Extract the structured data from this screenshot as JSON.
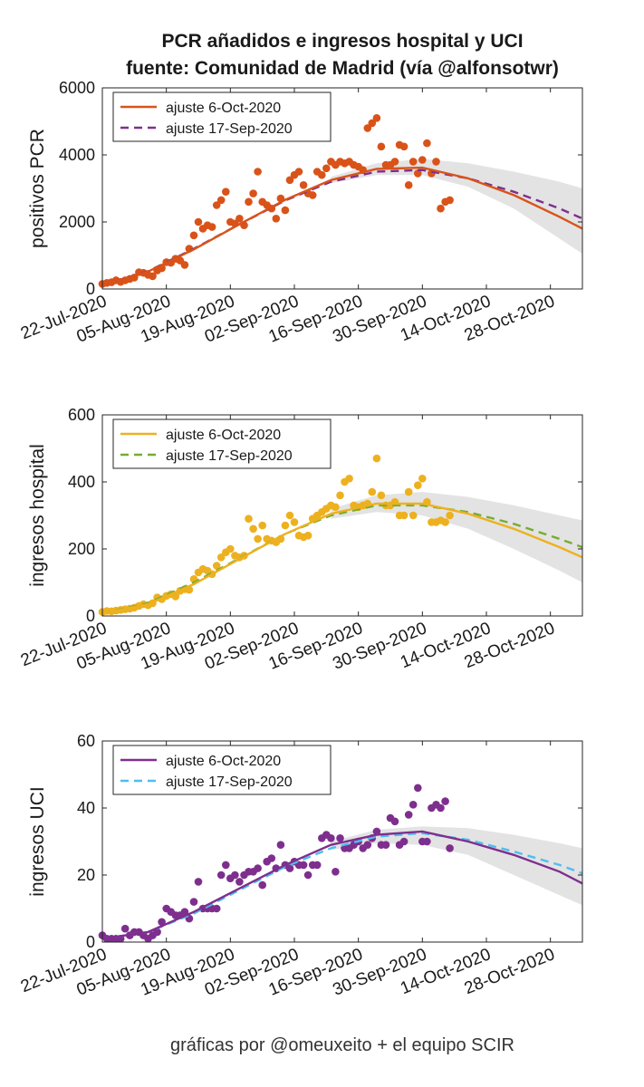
{
  "figure": {
    "title_line1": "PCR añadidos e ingresos hospital y UCI",
    "title_line2": "fuente: Comunidad de Madrid (vía @alfonsotwr)",
    "footer": "gráficas por @omeuxeito + el equipo SCIR"
  },
  "chart_data": [
    {
      "type": "scatter",
      "ylabel": "positivos PCR",
      "ylim": [
        0,
        6000
      ],
      "yticks": [
        0,
        2000,
        4000,
        6000
      ],
      "xlim": [
        "2020-07-22",
        "2020-11-04"
      ],
      "xticks": [
        "22-Jul-2020",
        "05-Aug-2020",
        "19-Aug-2020",
        "02-Sep-2020",
        "16-Sep-2020",
        "30-Sep-2020",
        "14-Oct-2020",
        "28-Oct-2020"
      ],
      "legend_position": "top-left",
      "colors": {
        "points": "#d95319",
        "fit_oct": "#d95319",
        "fit_sep": "#7e2f8e"
      },
      "points": {
        "x": [
          "2020-07-22",
          "2020-07-23",
          "2020-07-24",
          "2020-07-25",
          "2020-07-26",
          "2020-07-27",
          "2020-07-28",
          "2020-07-29",
          "2020-07-30",
          "2020-07-31",
          "2020-08-01",
          "2020-08-02",
          "2020-08-03",
          "2020-08-04",
          "2020-08-05",
          "2020-08-06",
          "2020-08-07",
          "2020-08-08",
          "2020-08-09",
          "2020-08-10",
          "2020-08-11",
          "2020-08-12",
          "2020-08-13",
          "2020-08-14",
          "2020-08-15",
          "2020-08-16",
          "2020-08-17",
          "2020-08-18",
          "2020-08-19",
          "2020-08-20",
          "2020-08-21",
          "2020-08-22",
          "2020-08-23",
          "2020-08-24",
          "2020-08-25",
          "2020-08-26",
          "2020-08-27",
          "2020-08-28",
          "2020-08-29",
          "2020-08-30",
          "2020-08-31",
          "2020-09-01",
          "2020-09-02",
          "2020-09-03",
          "2020-09-04",
          "2020-09-05",
          "2020-09-06",
          "2020-09-07",
          "2020-09-08",
          "2020-09-09",
          "2020-09-10",
          "2020-09-11",
          "2020-09-12",
          "2020-09-13",
          "2020-09-14",
          "2020-09-15",
          "2020-09-16",
          "2020-09-17",
          "2020-09-18",
          "2020-09-19",
          "2020-09-20",
          "2020-09-21",
          "2020-09-22",
          "2020-09-23",
          "2020-09-24",
          "2020-09-25",
          "2020-09-26",
          "2020-09-27",
          "2020-09-28",
          "2020-09-29",
          "2020-09-30",
          "2020-10-01",
          "2020-10-02",
          "2020-10-03",
          "2020-10-04",
          "2020-10-05",
          "2020-10-06"
        ],
        "y": [
          150,
          180,
          200,
          260,
          210,
          260,
          300,
          340,
          500,
          480,
          420,
          380,
          550,
          620,
          800,
          780,
          900,
          850,
          720,
          1200,
          1600,
          2000,
          1800,
          1900,
          1850,
          2500,
          2650,
          2900,
          2000,
          1950,
          2100,
          1900,
          2600,
          2850,
          3500,
          2600,
          2500,
          2400,
          2100,
          2700,
          2350,
          3250,
          3400,
          3500,
          3100,
          2850,
          2800,
          3500,
          3400,
          3600,
          3800,
          3700,
          3800,
          3750,
          3800,
          3700,
          3650,
          3550,
          4800,
          4950,
          5100,
          4250,
          3700,
          3700,
          3800,
          4300,
          4250,
          3100,
          3800,
          3450,
          3850,
          4350,
          3450,
          3800,
          2400,
          2600,
          2650
        ]
      },
      "fit_oct": {
        "name": "ajuste 6-Oct-2020",
        "x": [
          "2020-07-22",
          "2020-08-01",
          "2020-08-11",
          "2020-08-21",
          "2020-08-31",
          "2020-09-10",
          "2020-09-20",
          "2020-09-30",
          "2020-10-10",
          "2020-10-20",
          "2020-10-30",
          "2020-11-04"
        ],
        "y": [
          100,
          520,
          1180,
          1930,
          2660,
          3250,
          3580,
          3620,
          3300,
          2800,
          2150,
          1800
        ]
      },
      "fit_sep": {
        "name": "ajuste 17-Sep-2020",
        "x": [
          "2020-07-22",
          "2020-08-01",
          "2020-08-11",
          "2020-08-21",
          "2020-08-31",
          "2020-09-10",
          "2020-09-20",
          "2020-09-30",
          "2020-10-10",
          "2020-10-20",
          "2020-10-30",
          "2020-11-04"
        ],
        "y": [
          100,
          530,
          1200,
          1930,
          2640,
          3200,
          3500,
          3550,
          3300,
          2900,
          2400,
          2100
        ]
      },
      "band": {
        "x": [
          "2020-09-10",
          "2020-09-20",
          "2020-09-30",
          "2020-10-10",
          "2020-10-20",
          "2020-10-30",
          "2020-11-04"
        ],
        "upper": [
          3350,
          3750,
          3880,
          3750,
          3500,
          3200,
          3000
        ],
        "lower": [
          3150,
          3400,
          3400,
          3050,
          2400,
          1500,
          1050
        ]
      }
    },
    {
      "type": "scatter",
      "ylabel": "ingresos hospital",
      "ylim": [
        0,
        600
      ],
      "yticks": [
        0,
        200,
        400,
        600
      ],
      "xlim": [
        "2020-07-22",
        "2020-11-04"
      ],
      "xticks": [
        "22-Jul-2020",
        "05-Aug-2020",
        "19-Aug-2020",
        "02-Sep-2020",
        "16-Sep-2020",
        "30-Sep-2020",
        "14-Oct-2020",
        "28-Oct-2020"
      ],
      "legend_position": "top-left",
      "colors": {
        "points": "#edb120",
        "fit_oct": "#edb120",
        "fit_sep": "#77ac30"
      },
      "points": {
        "x": [
          "2020-07-22",
          "2020-07-23",
          "2020-07-24",
          "2020-07-25",
          "2020-07-26",
          "2020-07-27",
          "2020-07-28",
          "2020-07-29",
          "2020-07-30",
          "2020-07-31",
          "2020-08-01",
          "2020-08-02",
          "2020-08-03",
          "2020-08-04",
          "2020-08-05",
          "2020-08-06",
          "2020-08-07",
          "2020-08-08",
          "2020-08-09",
          "2020-08-10",
          "2020-08-11",
          "2020-08-12",
          "2020-08-13",
          "2020-08-14",
          "2020-08-15",
          "2020-08-16",
          "2020-08-17",
          "2020-08-18",
          "2020-08-19",
          "2020-08-20",
          "2020-08-21",
          "2020-08-22",
          "2020-08-23",
          "2020-08-24",
          "2020-08-25",
          "2020-08-26",
          "2020-08-27",
          "2020-08-28",
          "2020-08-29",
          "2020-08-30",
          "2020-08-31",
          "2020-09-01",
          "2020-09-02",
          "2020-09-03",
          "2020-09-04",
          "2020-09-05",
          "2020-09-06",
          "2020-09-07",
          "2020-09-08",
          "2020-09-09",
          "2020-09-10",
          "2020-09-11",
          "2020-09-12",
          "2020-09-13",
          "2020-09-14",
          "2020-09-15",
          "2020-09-16",
          "2020-09-17",
          "2020-09-18",
          "2020-09-19",
          "2020-09-20",
          "2020-09-21",
          "2020-09-22",
          "2020-09-23",
          "2020-09-24",
          "2020-09-25",
          "2020-09-26",
          "2020-09-27",
          "2020-09-28",
          "2020-09-29",
          "2020-09-30",
          "2020-10-01",
          "2020-10-02",
          "2020-10-03",
          "2020-10-04",
          "2020-10-05",
          "2020-10-06"
        ],
        "y": [
          12,
          15,
          14,
          16,
          18,
          20,
          22,
          25,
          30,
          35,
          32,
          38,
          55,
          50,
          60,
          65,
          58,
          75,
          80,
          78,
          110,
          130,
          140,
          135,
          125,
          150,
          175,
          190,
          200,
          180,
          175,
          180,
          290,
          260,
          230,
          270,
          230,
          225,
          220,
          230,
          270,
          300,
          280,
          240,
          235,
          240,
          290,
          300,
          310,
          320,
          330,
          325,
          360,
          400,
          410,
          330,
          325,
          330,
          335,
          370,
          470,
          360,
          330,
          330,
          340,
          300,
          300,
          370,
          300,
          390,
          410,
          340,
          280,
          280,
          285,
          280,
          300
        ]
      },
      "fit_oct": {
        "name": "ajuste 6-Oct-2020",
        "x": [
          "2020-07-22",
          "2020-08-01",
          "2020-08-11",
          "2020-08-21",
          "2020-08-31",
          "2020-09-10",
          "2020-09-20",
          "2020-09-30",
          "2020-10-10",
          "2020-10-20",
          "2020-10-30",
          "2020-11-04"
        ],
        "y": [
          8,
          35,
          95,
          170,
          245,
          305,
          335,
          335,
          305,
          260,
          205,
          175
        ]
      },
      "fit_sep": {
        "name": "ajuste 17-Sep-2020",
        "x": [
          "2020-07-22",
          "2020-08-01",
          "2020-08-11",
          "2020-08-21",
          "2020-08-31",
          "2020-09-10",
          "2020-09-20",
          "2020-09-30",
          "2020-10-10",
          "2020-10-20",
          "2020-10-30",
          "2020-11-04"
        ],
        "y": [
          8,
          38,
          100,
          172,
          245,
          300,
          330,
          330,
          310,
          275,
          230,
          205
        ]
      },
      "band": {
        "x": [
          "2020-09-10",
          "2020-09-20",
          "2020-09-30",
          "2020-10-10",
          "2020-10-20",
          "2020-10-30",
          "2020-11-04"
        ],
        "upper": [
          320,
          360,
          370,
          355,
          330,
          300,
          285
        ],
        "lower": [
          290,
          310,
          300,
          260,
          200,
          135,
          100
        ]
      }
    },
    {
      "type": "scatter",
      "ylabel": "ingresos UCI",
      "ylim": [
        0,
        60
      ],
      "yticks": [
        0,
        20,
        40,
        60
      ],
      "xlim": [
        "2020-07-22",
        "2020-11-04"
      ],
      "xticks": [
        "22-Jul-2020",
        "05-Aug-2020",
        "19-Aug-2020",
        "02-Sep-2020",
        "16-Sep-2020",
        "30-Sep-2020",
        "14-Oct-2020",
        "28-Oct-2020"
      ],
      "legend_position": "top-left",
      "colors": {
        "points": "#7e2f8e",
        "fit_oct": "#7e2f8e",
        "fit_sep": "#4dbeee"
      },
      "points": {
        "x": [
          "2020-07-22",
          "2020-07-23",
          "2020-07-24",
          "2020-07-25",
          "2020-07-26",
          "2020-07-27",
          "2020-07-28",
          "2020-07-29",
          "2020-07-30",
          "2020-07-31",
          "2020-08-01",
          "2020-08-02",
          "2020-08-03",
          "2020-08-04",
          "2020-08-05",
          "2020-08-06",
          "2020-08-07",
          "2020-08-08",
          "2020-08-09",
          "2020-08-10",
          "2020-08-11",
          "2020-08-12",
          "2020-08-13",
          "2020-08-14",
          "2020-08-15",
          "2020-08-16",
          "2020-08-17",
          "2020-08-18",
          "2020-08-19",
          "2020-08-20",
          "2020-08-21",
          "2020-08-22",
          "2020-08-23",
          "2020-08-24",
          "2020-08-25",
          "2020-08-26",
          "2020-08-27",
          "2020-08-28",
          "2020-08-29",
          "2020-08-30",
          "2020-08-31",
          "2020-09-01",
          "2020-09-02",
          "2020-09-03",
          "2020-09-04",
          "2020-09-05",
          "2020-09-06",
          "2020-09-07",
          "2020-09-08",
          "2020-09-09",
          "2020-09-10",
          "2020-09-11",
          "2020-09-12",
          "2020-09-13",
          "2020-09-14",
          "2020-09-15",
          "2020-09-16",
          "2020-09-17",
          "2020-09-18",
          "2020-09-19",
          "2020-09-20",
          "2020-09-21",
          "2020-09-22",
          "2020-09-23",
          "2020-09-24",
          "2020-09-25",
          "2020-09-26",
          "2020-09-27",
          "2020-09-28",
          "2020-09-29",
          "2020-09-30",
          "2020-10-01",
          "2020-10-02",
          "2020-10-03",
          "2020-10-04",
          "2020-10-05",
          "2020-10-06"
        ],
        "y": [
          2,
          1,
          1,
          1,
          1,
          4,
          2,
          3,
          3,
          2,
          1,
          2,
          3,
          6,
          10,
          9,
          8,
          8,
          9,
          7,
          12,
          18,
          10,
          10,
          10,
          10,
          20,
          23,
          19,
          20,
          18,
          20,
          21,
          21,
          22,
          17,
          24,
          25,
          22,
          29,
          23,
          22,
          24,
          23,
          23,
          20,
          23,
          23,
          31,
          32,
          31,
          21,
          31,
          28,
          28,
          29,
          30,
          28,
          29,
          31,
          33,
          29,
          29,
          37,
          36,
          29,
          30,
          38,
          41,
          46,
          30,
          30,
          40,
          41,
          40,
          42,
          28
        ]
      },
      "fit_oct": {
        "name": "ajuste 6-Oct-2020",
        "x": [
          "2020-07-22",
          "2020-08-01",
          "2020-08-11",
          "2020-08-21",
          "2020-08-31",
          "2020-09-10",
          "2020-09-20",
          "2020-09-30",
          "2020-10-10",
          "2020-10-20",
          "2020-10-30",
          "2020-11-04"
        ],
        "y": [
          1,
          3,
          9,
          16,
          23,
          29,
          32,
          33,
          30,
          26,
          21,
          17.5
        ]
      },
      "fit_sep": {
        "name": "ajuste 17-Sep-2020",
        "x": [
          "2020-07-22",
          "2020-08-01",
          "2020-08-11",
          "2020-08-21",
          "2020-08-31",
          "2020-09-10",
          "2020-09-20",
          "2020-09-30",
          "2020-10-10",
          "2020-10-20",
          "2020-10-30",
          "2020-11-04"
        ],
        "y": [
          1,
          3,
          8.5,
          15.5,
          22.5,
          28,
          31.5,
          32.5,
          30.5,
          27,
          23,
          20.5
        ]
      },
      "band": {
        "x": [
          "2020-09-10",
          "2020-09-20",
          "2020-09-30",
          "2020-10-10",
          "2020-10-20",
          "2020-10-30",
          "2020-11-04"
        ],
        "upper": [
          30,
          33.5,
          34.5,
          34,
          32,
          29.5,
          28
        ],
        "lower": [
          27.5,
          29.5,
          29,
          26,
          20,
          14,
          11
        ]
      }
    }
  ]
}
